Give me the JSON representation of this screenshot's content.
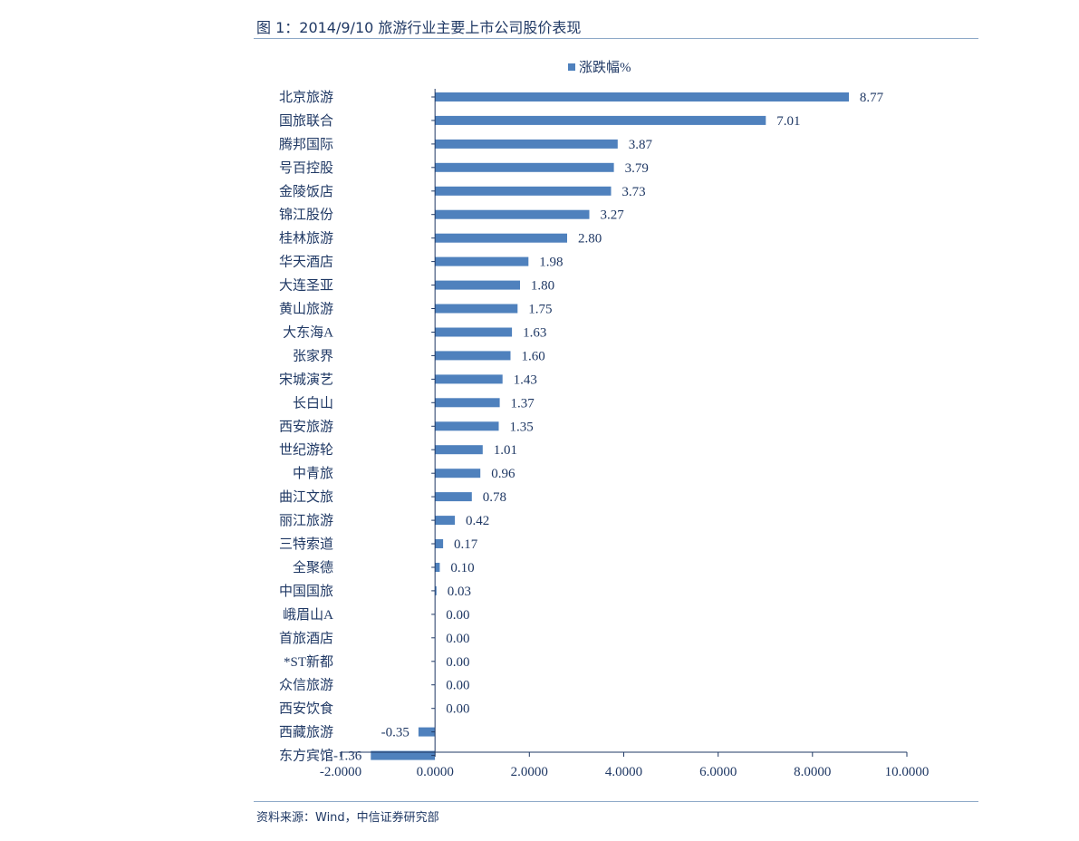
{
  "figure_title": "图 1：2014/9/10 旅游行业主要上市公司股价表现",
  "source_note": "资料来源：Wind，中信证券研究部",
  "colors": {
    "bar": "#4f81bd",
    "text": "#1f3864",
    "axis": "#1f3864",
    "rule": "#8ea9c8"
  },
  "chart_data": {
    "type": "bar",
    "orientation": "horizontal",
    "title": "",
    "xlabel": "",
    "ylabel": "",
    "legend_position": "top",
    "grid": false,
    "xlim": [
      -2,
      10
    ],
    "x_ticks": [
      -2,
      0,
      2,
      4,
      6,
      8,
      10
    ],
    "x_tick_labels": [
      "-2.0000",
      "0.0000",
      "2.0000",
      "4.0000",
      "6.0000",
      "8.0000",
      "10.0000"
    ],
    "categories": [
      "北京旅游",
      "国旅联合",
      "腾邦国际",
      "号百控股",
      "金陵饭店",
      "锦江股份",
      "桂林旅游",
      "华天酒店",
      "大连圣亚",
      "黄山旅游",
      "大东海A",
      "张家界",
      "宋城演艺",
      "长白山",
      "西安旅游",
      "世纪游轮",
      "中青旅",
      "曲江文旅",
      "丽江旅游",
      "三特索道",
      "全聚德",
      "中国国旅",
      "峨眉山A",
      "首旅酒店",
      "*ST新都",
      "众信旅游",
      "西安饮食",
      "西藏旅游",
      "东方宾馆"
    ],
    "series": [
      {
        "name": "涨跌幅%",
        "values": [
          8.77,
          7.01,
          3.87,
          3.79,
          3.73,
          3.27,
          2.8,
          1.98,
          1.8,
          1.75,
          1.63,
          1.6,
          1.43,
          1.37,
          1.35,
          1.01,
          0.96,
          0.78,
          0.42,
          0.17,
          0.1,
          0.03,
          0.0,
          0.0,
          0.0,
          0.0,
          0.0,
          -0.35,
          -1.36
        ],
        "labels": [
          "8.77",
          "7.01",
          "3.87",
          "3.79",
          "3.73",
          "3.27",
          "2.80",
          "1.98",
          "1.80",
          "1.75",
          "1.63",
          "1.60",
          "1.43",
          "1.37",
          "1.35",
          "1.01",
          "0.96",
          "0.78",
          "0.42",
          "0.17",
          "0.10",
          "0.03",
          "0.00",
          "0.00",
          "0.00",
          "0.00",
          "0.00",
          "-0.35",
          "-1.36"
        ]
      }
    ]
  }
}
